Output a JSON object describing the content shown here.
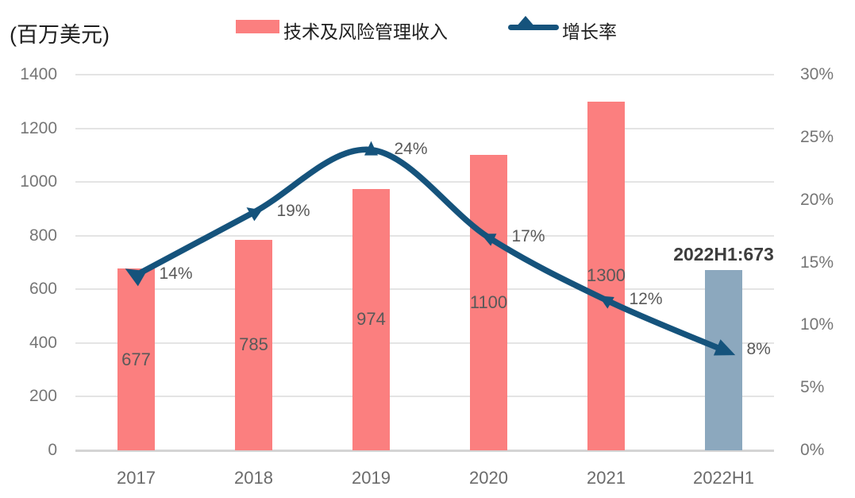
{
  "colors": {
    "bar": "#FB7F7F",
    "bar_highlight": "#8CA8BE",
    "line": "#15537C",
    "grid": "#E4E4E4",
    "axis_line": "#D4D4D4",
    "tick_text": "#767676",
    "value_text": "#595959",
    "annotation_text": "#3d3d3d",
    "legend_text": "#1f1f1f"
  },
  "chart_data": {
    "type": "combo-bar-line",
    "unit_label": "(百万美元)",
    "categories": [
      "2017",
      "2018",
      "2019",
      "2020",
      "2021",
      "2022H1"
    ],
    "series": [
      {
        "name": "技术及风险管理收入",
        "type": "bar",
        "axis": "left",
        "values": [
          677,
          785,
          974,
          1100,
          1300,
          673
        ],
        "labels_inside": [
          "677",
          "785",
          "974",
          "1100",
          "1300",
          null
        ],
        "highlight_index": 5
      },
      {
        "name": "增长率",
        "type": "line",
        "axis": "right",
        "values_percent": [
          14,
          19,
          24,
          17,
          12,
          8
        ],
        "labels": [
          "14%",
          "19%",
          "24%",
          "17%",
          "12%",
          "8%"
        ]
      }
    ],
    "annotation": "2022H1:673",
    "left_axis": {
      "min": 0,
      "max": 1400,
      "step": 200,
      "tick_labels": [
        "0",
        "200",
        "400",
        "600",
        "800",
        "1000",
        "1200",
        "1400"
      ]
    },
    "right_axis": {
      "min": 0,
      "max": 30,
      "step": 5,
      "tick_labels": [
        "0%",
        "5%",
        "10%",
        "15%",
        "20%",
        "25%",
        "30%"
      ]
    },
    "grid": "horizontal-only",
    "legend_position": "top"
  }
}
